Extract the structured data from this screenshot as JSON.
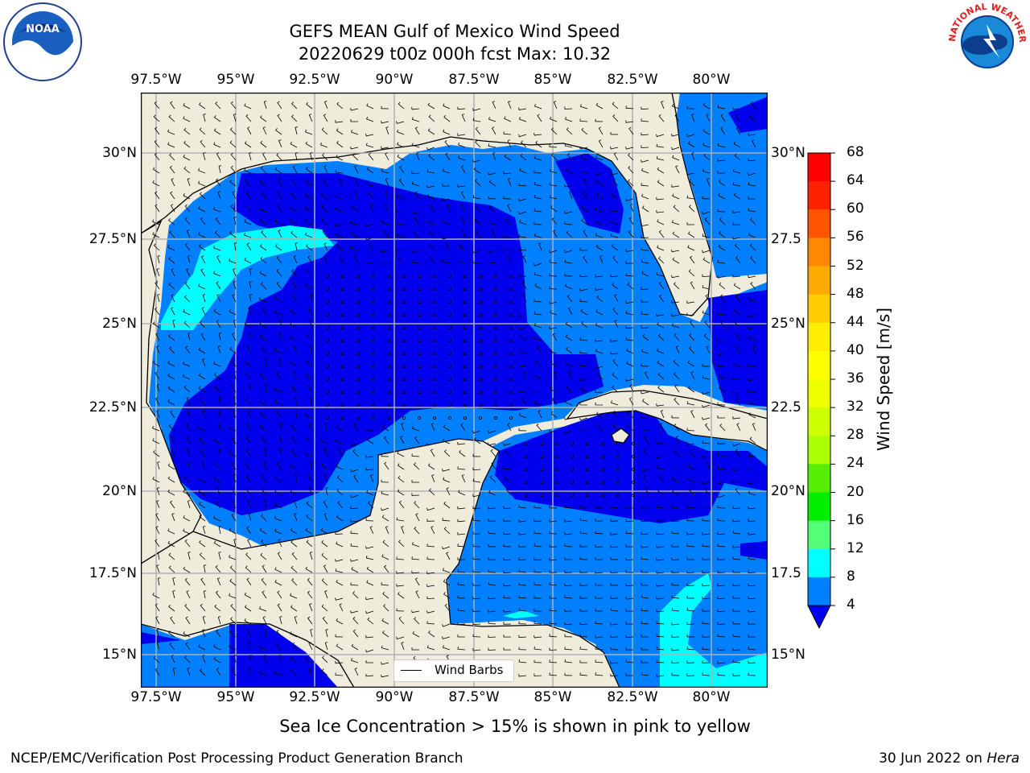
{
  "title": {
    "line1": "GEFS MEAN Gulf of Mexico Wind Speed",
    "line2": "20220629 t00z 000h fcst   Max: 10.32"
  },
  "colors": {
    "land": "#efecdc",
    "ocean_4_8": "#0080ff",
    "ocean_under_4": "#0000ee",
    "ocean_8_12": "#00ffff",
    "grid": "#b0b0b0",
    "coast": "#000000"
  },
  "map": {
    "x_ticks_top": [
      "97.5°W",
      "95°W",
      "92.5°W",
      "90°W",
      "87.5°W",
      "85°W",
      "82.5°W",
      "80°W"
    ],
    "x_ticks_bottom": [
      "97.5°W",
      "95°W",
      "92.5°W",
      "90°W",
      "87.5°W",
      "85°W",
      "82.5°W",
      "80°W"
    ],
    "y_ticks_left": [
      "30°N",
      "27.5°N",
      "25°N",
      "22.5°N",
      "20°N",
      "17.5°N",
      "15°N"
    ],
    "y_ticks_right": [
      "30°N",
      "27.5",
      "25°N",
      "22.5",
      "20°N",
      "17.5",
      "15°N"
    ],
    "legend_label": "Wind Barbs"
  },
  "colorbar": {
    "label": "Wind Speed [m/s]",
    "ticks": [
      "68",
      "64",
      "60",
      "56",
      "52",
      "48",
      "44",
      "40",
      "36",
      "32",
      "28",
      "24",
      "20",
      "16",
      "12",
      "8",
      "4"
    ],
    "colors": [
      "#ff0000",
      "#ff2200",
      "#ff5500",
      "#ff8800",
      "#ffaa00",
      "#ffcc00",
      "#ffee00",
      "#ffff00",
      "#eeff00",
      "#ccff00",
      "#aaff00",
      "#55ee00",
      "#00ee00",
      "#55ff77",
      "#aaffff",
      "#55ffff",
      "#00ffff",
      "#0080ff"
    ],
    "extend_color": "#0000ee"
  },
  "footer": {
    "subtitle": "Sea Ice Concentration > 15% is shown in pink to yellow",
    "left": "NCEP/EMC/Verification Post Processing Product Generation Branch",
    "right_prefix": "30 Jun 2022 on ",
    "right_italic": "Hera"
  },
  "logos": {
    "noaa_text": "NOAA",
    "nws_text": "NATIONAL WEATHER SERVICE"
  }
}
